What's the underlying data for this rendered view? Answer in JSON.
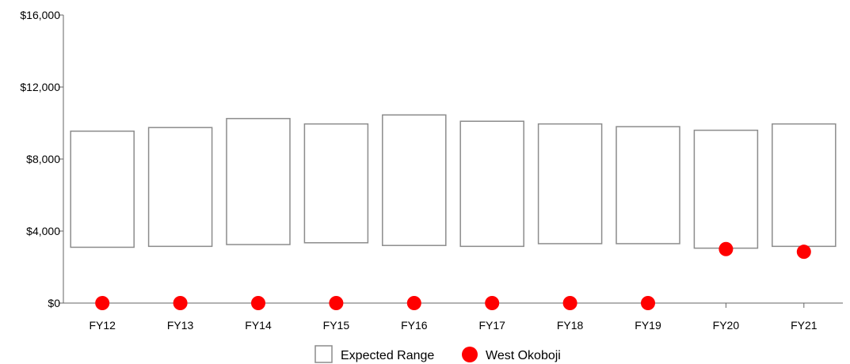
{
  "chart_data": {
    "type": "bar",
    "categories": [
      "FY12",
      "FY13",
      "FY14",
      "FY15",
      "FY16",
      "FY17",
      "FY18",
      "FY19",
      "FY20",
      "FY21"
    ],
    "range_low": [
      3100,
      3150,
      3250,
      3350,
      3200,
      3150,
      3300,
      3300,
      3050,
      3150
    ],
    "range_high": [
      9550,
      9750,
      10250,
      9950,
      10450,
      10100,
      9950,
      9800,
      9600,
      9950
    ],
    "values": [
      0,
      0,
      0,
      0,
      0,
      0,
      0,
      0,
      3000,
      2850
    ],
    "yticks": [
      0,
      4000,
      8000,
      12000,
      16000
    ],
    "ytick_labels": [
      "$0",
      "$4,000",
      "$8,000",
      "$12,000",
      "$16,000"
    ],
    "ylim": [
      0,
      16000
    ],
    "legend": {
      "placement": "bottom-center",
      "range_label": "Expected Range",
      "point_label": "West Okoboji"
    },
    "colors": {
      "range_stroke": "#8c8c8c",
      "point_fill": "#ff0000",
      "axis": "#666666"
    }
  }
}
